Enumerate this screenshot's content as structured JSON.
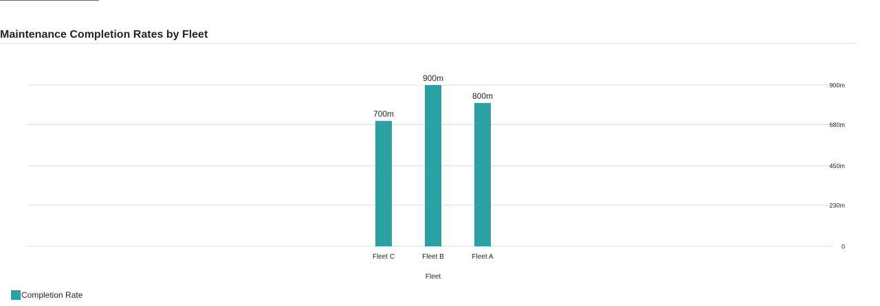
{
  "chart_data": {
    "type": "bar",
    "title": "Maintenance Completion Rates by Fleet",
    "categories": [
      "Fleet C",
      "Fleet B",
      "Fleet A"
    ],
    "series": [
      {
        "name": "Completion Rate",
        "values": [
          0.7,
          0.9,
          0.8
        ],
        "data_labels": [
          "700m",
          "900m",
          "800m"
        ]
      }
    ],
    "xlabel": "Fleet",
    "ylabel": "",
    "ylim": [
      0,
      0.9
    ],
    "yticks": [
      0,
      0.23,
      0.45,
      0.68,
      0.9
    ],
    "ytick_labels": [
      "0",
      "230m",
      "450m",
      "680m",
      "900m"
    ],
    "y_axis_side": "right",
    "grid": true,
    "legend": "bottom-left",
    "colors": {
      "bar": "#2ba1a3",
      "grid": "#d9d9d9",
      "text": "#252423"
    }
  }
}
